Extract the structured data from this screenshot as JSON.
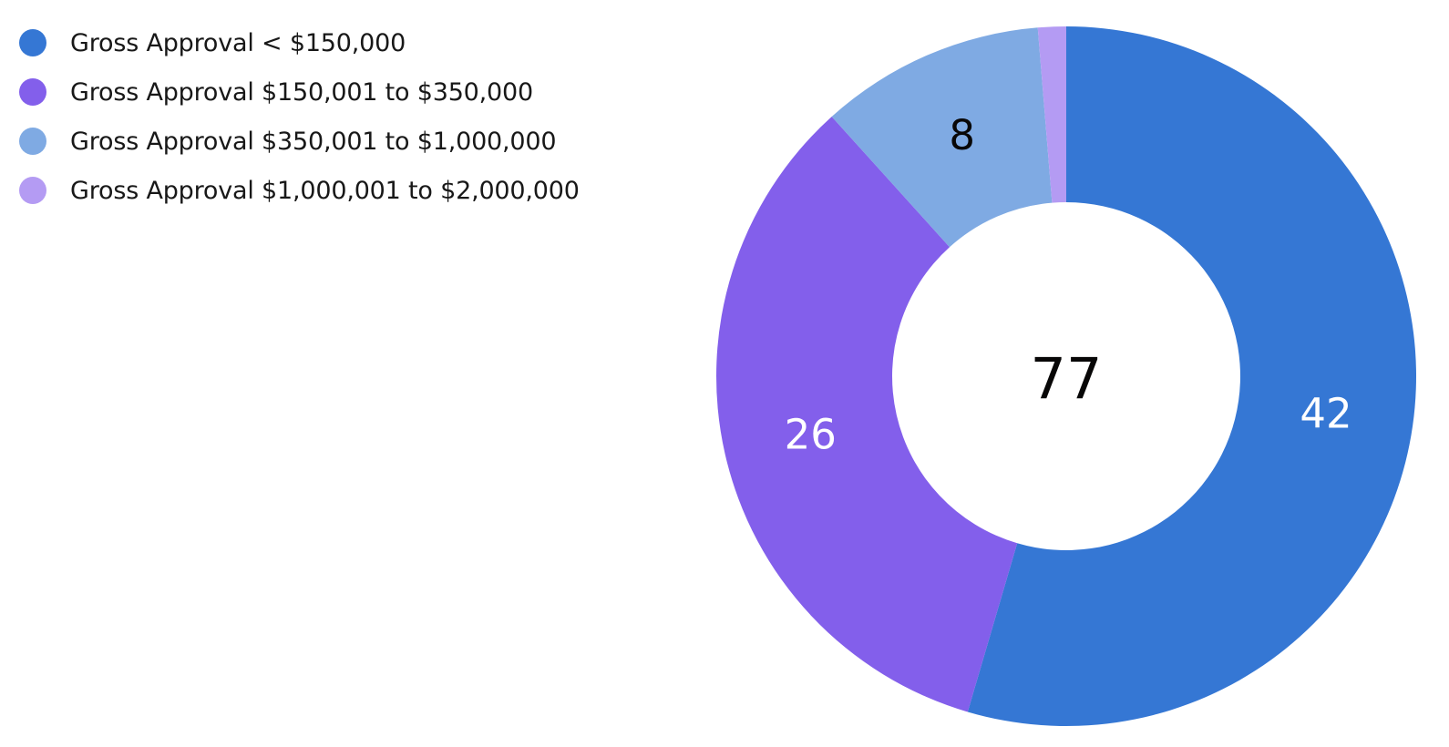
{
  "chart_data": {
    "type": "donut",
    "series": [
      {
        "name": "Gross Approval < $150,000",
        "value": 42,
        "color": "#3577d4",
        "label_color": "#ffffff"
      },
      {
        "name": "Gross Approval $150,001 to $350,000",
        "value": 26,
        "color": "#835feb",
        "label_color": "#ffffff"
      },
      {
        "name": "Gross Approval $350,001 to $1,000,000",
        "value": 8,
        "color": "#7faae3",
        "label_color": "#080707"
      },
      {
        "name": "Gross Approval $1,000,001 to $2,000,000",
        "value": 1,
        "color": "#b49bf3",
        "label_color": "#080707"
      }
    ],
    "total": 77,
    "legend_position": "top-left",
    "slice_labels_shown": [
      "42",
      "26",
      "8"
    ]
  }
}
